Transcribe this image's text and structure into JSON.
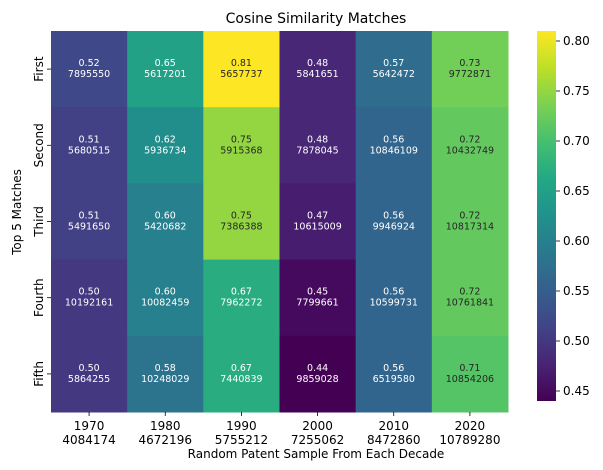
{
  "chart_data": {
    "type": "heatmap",
    "title": "Cosine Similarity Matches",
    "xlabel": "Random Patent Sample From Each Decade",
    "ylabel": "Top 5 Matches",
    "x_categories": [
      {
        "label": "1970",
        "id": "4084174"
      },
      {
        "label": "1980",
        "id": "4672196"
      },
      {
        "label": "1990",
        "id": "5755212"
      },
      {
        "label": "2000",
        "id": "7255062"
      },
      {
        "label": "2010",
        "id": "8472860"
      },
      {
        "label": "2020",
        "id": "10789280"
      }
    ],
    "y_categories": [
      "First",
      "Second",
      "Third",
      "Fourth",
      "Fifth"
    ],
    "values": [
      [
        0.52,
        0.65,
        0.81,
        0.48,
        0.57,
        0.73
      ],
      [
        0.51,
        0.62,
        0.75,
        0.48,
        0.56,
        0.72
      ],
      [
        0.51,
        0.6,
        0.75,
        0.47,
        0.56,
        0.72
      ],
      [
        0.5,
        0.6,
        0.67,
        0.45,
        0.56,
        0.72
      ],
      [
        0.5,
        0.58,
        0.67,
        0.44,
        0.56,
        0.71
      ]
    ],
    "value_labels": [
      [
        "0.52",
        "0.65",
        "0.81",
        "0.48",
        "0.57",
        "0.73"
      ],
      [
        "0.51",
        "0.62",
        "0.75",
        "0.48",
        "0.56",
        "0.72"
      ],
      [
        "0.51",
        "0.60",
        "0.75",
        "0.47",
        "0.56",
        "0.72"
      ],
      [
        "0.50",
        "0.60",
        "0.67",
        "0.45",
        "0.56",
        "0.72"
      ],
      [
        "0.50",
        "0.58",
        "0.67",
        "0.44",
        "0.56",
        "0.71"
      ]
    ],
    "match_ids": [
      [
        "7895550",
        "5617201",
        "5657737",
        "5841651",
        "5642472",
        "9772871"
      ],
      [
        "5680515",
        "5936734",
        "5915368",
        "7878045",
        "10846109",
        "10432749"
      ],
      [
        "5491650",
        "5420682",
        "7386388",
        "10615009",
        "9946924",
        "10817314"
      ],
      [
        "10192161",
        "10082459",
        "7962272",
        "7799661",
        "10599731",
        "10761841"
      ],
      [
        "5864255",
        "10248029",
        "7440839",
        "9859028",
        "6519580",
        "10854206"
      ]
    ],
    "colorbar": {
      "colormap": "viridis",
      "vmin": 0.44,
      "vmax": 0.81,
      "ticks": [
        "0.45",
        "0.50",
        "0.55",
        "0.60",
        "0.65",
        "0.70",
        "0.75",
        "0.80"
      ]
    }
  }
}
